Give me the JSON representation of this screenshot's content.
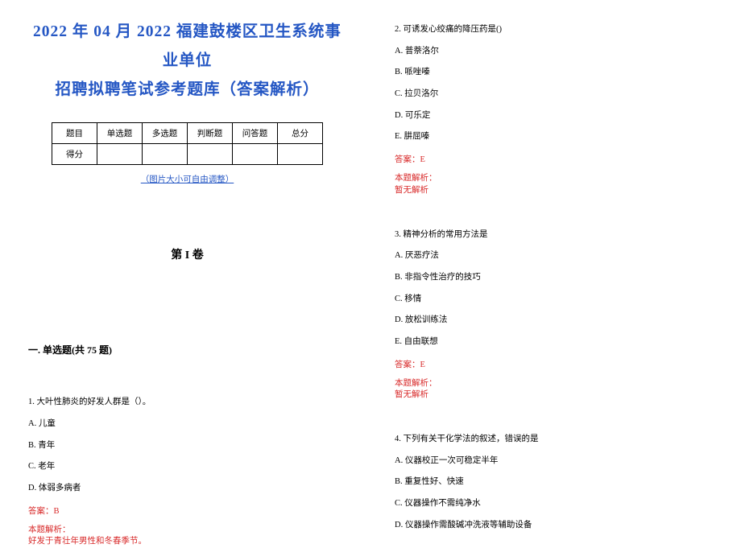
{
  "colors": {
    "title": "#2557c4",
    "link": "#2557c4",
    "danger": "#d82a2a",
    "body": "#000000",
    "border": "#000000",
    "background": "#ffffff"
  },
  "title_line1": "2022 年 04 月 2022 福建鼓楼区卫生系统事业单位",
  "title_line2": "招聘拟聘笔试参考题库（答案解析）",
  "table": {
    "headers": [
      "题目",
      "单选题",
      "多选题",
      "判断题",
      "问答题",
      "总分"
    ],
    "row_label": "得分"
  },
  "note": "（图片大小可自由调整）",
  "volume": "第 I 卷",
  "section_head": "一. 单选题(共 75 题)",
  "answer_prefix": "答案：",
  "explanation_label": "本题解析：",
  "no_explanation": "暂无解析",
  "q1": {
    "stem": "1. 大叶性肺炎的好发人群是（）。",
    "opts": [
      "A. 儿童",
      "B. 青年",
      "C. 老年",
      "D. 体弱多病者"
    ],
    "answer": "B",
    "explanation": "好发于青壮年男性和冬春季节。"
  },
  "q2": {
    "stem": "2. 可诱发心绞痛的降压药是()",
    "opts": [
      "A. 普萘洛尔",
      "B. 哌唑嗪",
      "C. 拉贝洛尔",
      "D. 可乐定",
      "E. 肼屈嗪"
    ],
    "answer": "E"
  },
  "q3": {
    "stem": "3. 精神分析的常用方法是",
    "opts": [
      "A. 厌恶疗法",
      "B. 非指令性治疗的技巧",
      "C. 移情",
      "D. 放松训练法",
      "E. 自由联想"
    ],
    "answer": "E"
  },
  "q4": {
    "stem": "4. 下列有关干化学法的叙述，错误的是",
    "opts": [
      "A. 仪器校正一次可稳定半年",
      "B. 重复性好、快速",
      "C. 仪器操作不需纯净水",
      "D. 仪器操作需酸碱冲洗液等辅助设备"
    ]
  }
}
